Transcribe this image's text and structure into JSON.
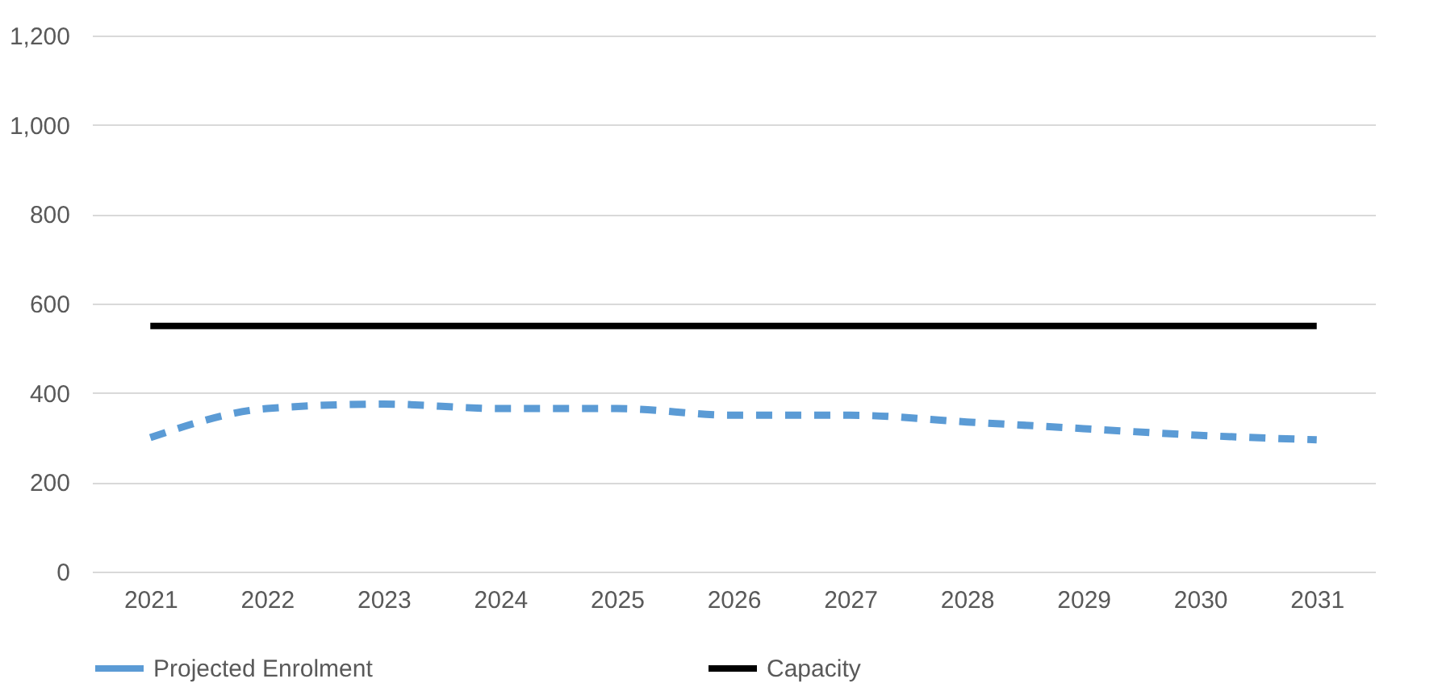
{
  "chart_data": {
    "type": "line",
    "categories": [
      "2021",
      "2022",
      "2023",
      "2024",
      "2025",
      "2026",
      "2027",
      "2028",
      "2029",
      "2030",
      "2031"
    ],
    "series": [
      {
        "name": "Projected Enrolment",
        "color": "#5b9bd5",
        "line_style": "dashed",
        "values": [
          300,
          365,
          375,
          365,
          365,
          350,
          350,
          335,
          320,
          305,
          295
        ]
      },
      {
        "name": "Capacity",
        "color": "#000000",
        "line_style": "solid",
        "values": [
          550,
          550,
          550,
          550,
          550,
          550,
          550,
          550,
          550,
          550,
          550
        ]
      }
    ],
    "ylim": [
      0,
      1200
    ],
    "yticks": [
      0,
      {
        "value": 200,
        "label": "200"
      },
      {
        "value": 400,
        "label": "400"
      },
      {
        "value": 600,
        "label": "600"
      },
      {
        "value": 800,
        "label": "800"
      },
      {
        "value": 1000,
        "label": "1,000"
      },
      {
        "value": 1200,
        "label": "1,200"
      }
    ],
    "grid": "y",
    "legend": "bottom",
    "marker": "none"
  }
}
